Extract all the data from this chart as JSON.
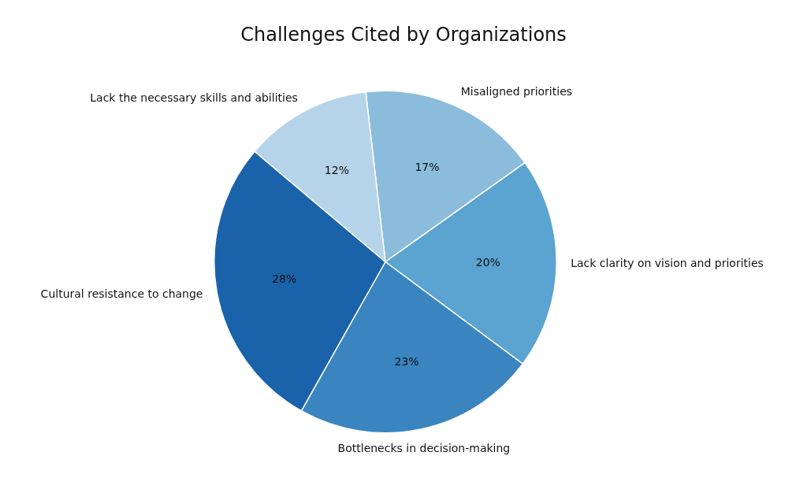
{
  "chart_data": {
    "type": "pie",
    "title": "Challenges Cited by Organizations",
    "categories": [
      "Misaligned priorities",
      "Lack clarity on vision and priorities",
      "Bottlenecks in decision-making",
      "Cultural resistance to change",
      "Lack the necessary skills and abilities"
    ],
    "values": [
      17,
      20,
      23,
      28,
      12
    ],
    "colors": [
      "#8bbcdc",
      "#5ba3d0",
      "#3a85c0",
      "#1a63aa",
      "#b5d3e9"
    ],
    "value_labels": [
      "17%",
      "20%",
      "23%",
      "28%",
      "12%"
    ],
    "legend": false
  }
}
